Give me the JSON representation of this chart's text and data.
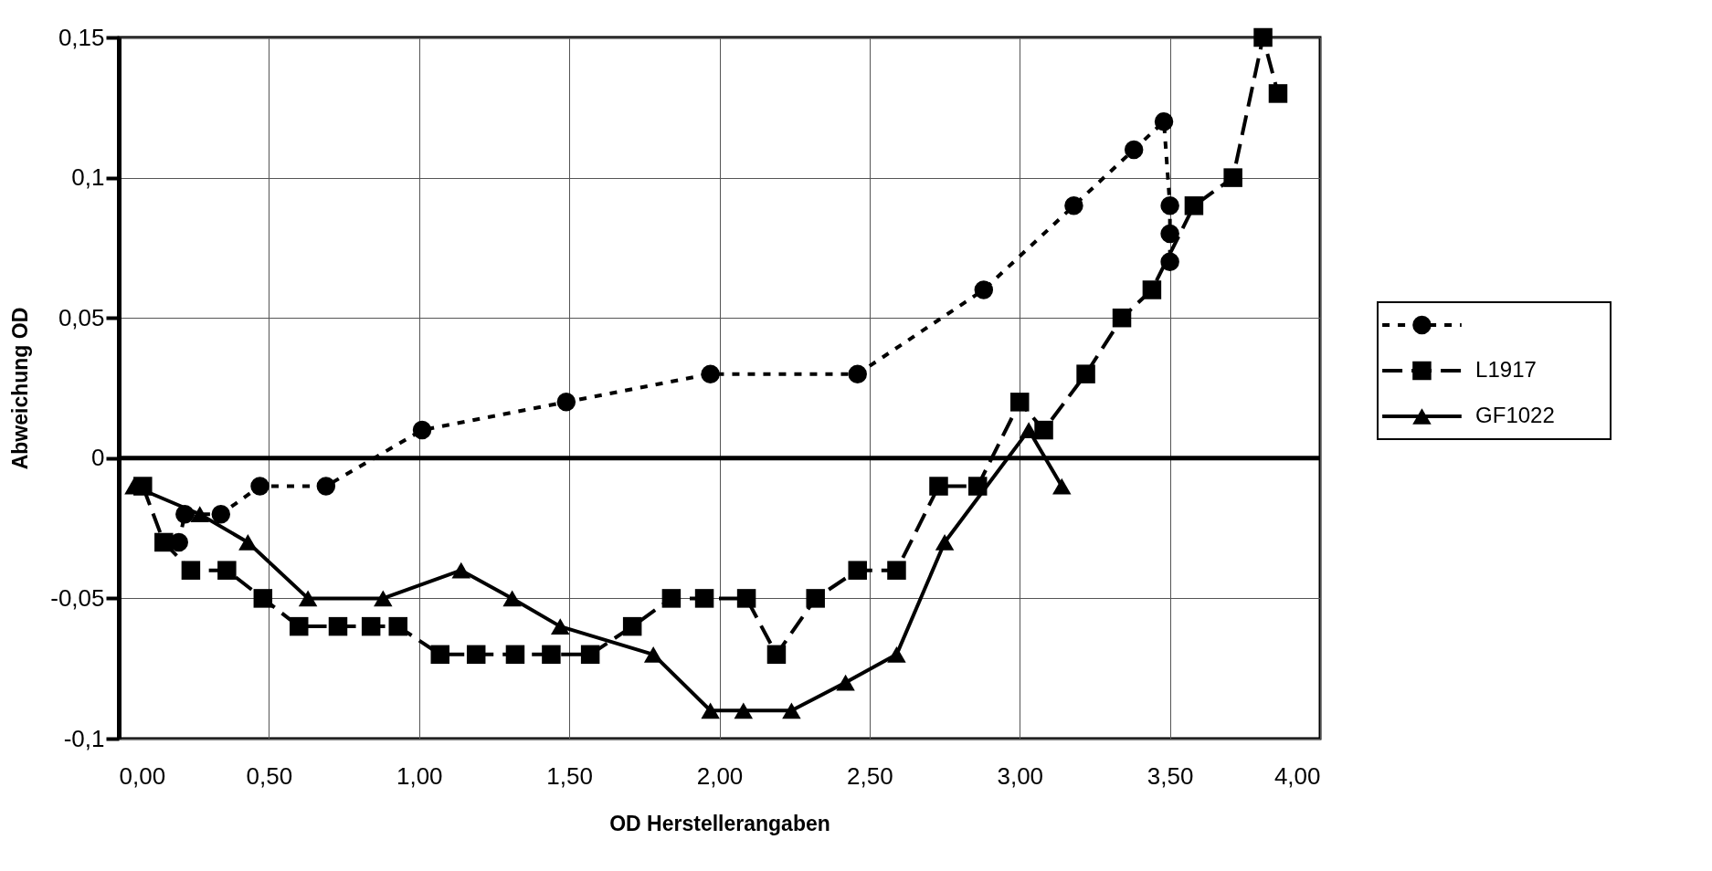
{
  "chart_data": {
    "type": "line",
    "xlabel": "OD Herstellerangaben",
    "ylabel": "Abweichung OD",
    "xlim": [
      0,
      4
    ],
    "xticks": [
      {
        "value": 0,
        "label": "0,00"
      },
      {
        "value": 0.5,
        "label": "0,50"
      },
      {
        "value": 1,
        "label": "1,00"
      },
      {
        "value": 1.5,
        "label": "1,50"
      },
      {
        "value": 2,
        "label": "2,00"
      },
      {
        "value": 2.5,
        "label": "2,50"
      },
      {
        "value": 3,
        "label": "3,00"
      },
      {
        "value": 3.5,
        "label": "3,50"
      },
      {
        "value": 4,
        "label": "4,00"
      }
    ],
    "ylim": [
      -0.1,
      0.15
    ],
    "yticks": [
      {
        "value": -0.1,
        "label": "-0,1"
      },
      {
        "value": -0.05,
        "label": "-0,05"
      },
      {
        "value": 0,
        "label": "0"
      },
      {
        "value": 0.05,
        "label": "0,05"
      },
      {
        "value": 0.1,
        "label": "0,1"
      },
      {
        "value": 0.15,
        "label": "0,15"
      }
    ],
    "grid": true,
    "legend": "right",
    "ref_lines": [
      {
        "axis": "y",
        "value": 0,
        "color": "#000000"
      }
    ],
    "series": [
      {
        "color": "#000000",
        "marker": "circle",
        "line_style": "dotted",
        "x": [
          0.2,
          0.22,
          0.34,
          0.47,
          0.69,
          1.01,
          1.49,
          1.97,
          2.46,
          2.88,
          3.18,
          3.38,
          3.48,
          3.5,
          3.5,
          3.5
        ],
        "values": [
          -0.03,
          -0.02,
          -0.02,
          -0.01,
          -0.01,
          0.01,
          0.02,
          0.03,
          0.03,
          0.06,
          0.09,
          0.11,
          0.12,
          0.09,
          0.08,
          0.07
        ]
      },
      {
        "name": "L1917",
        "color": "#000000",
        "marker": "square",
        "line_style": "dashed",
        "x": [
          0.08,
          0.15,
          0.24,
          0.36,
          0.48,
          0.6,
          0.73,
          0.84,
          0.93,
          1.07,
          1.19,
          1.32,
          1.44,
          1.57,
          1.71,
          1.84,
          1.95,
          2.09,
          2.19,
          2.32,
          2.46,
          2.59,
          2.73,
          2.86,
          3.0,
          3.08,
          3.22,
          3.34,
          3.44,
          3.58,
          3.71,
          3.81,
          3.86
        ],
        "values": [
          -0.01,
          -0.03,
          -0.04,
          -0.04,
          -0.05,
          -0.06,
          -0.06,
          -0.06,
          -0.06,
          -0.07,
          -0.07,
          -0.07,
          -0.07,
          -0.07,
          -0.06,
          -0.05,
          -0.05,
          -0.05,
          -0.07,
          -0.05,
          -0.04,
          -0.04,
          -0.01,
          -0.01,
          0.02,
          0.01,
          0.03,
          0.05,
          0.06,
          0.09,
          0.1,
          0.15,
          0.13
        ]
      },
      {
        "name": "GF1022",
        "color": "#000000",
        "marker": "triangle",
        "line_style": "solid",
        "x": [
          0.05,
          0.27,
          0.43,
          0.63,
          0.88,
          1.14,
          1.31,
          1.47,
          1.78,
          1.97,
          2.08,
          2.24,
          2.42,
          2.59,
          2.75,
          3.03,
          3.14
        ],
        "values": [
          -0.01,
          -0.02,
          -0.03,
          -0.05,
          -0.05,
          -0.04,
          -0.05,
          -0.06,
          -0.07,
          -0.09,
          -0.09,
          -0.09,
          -0.08,
          -0.07,
          -0.03,
          0.01,
          -0.01
        ]
      }
    ]
  }
}
